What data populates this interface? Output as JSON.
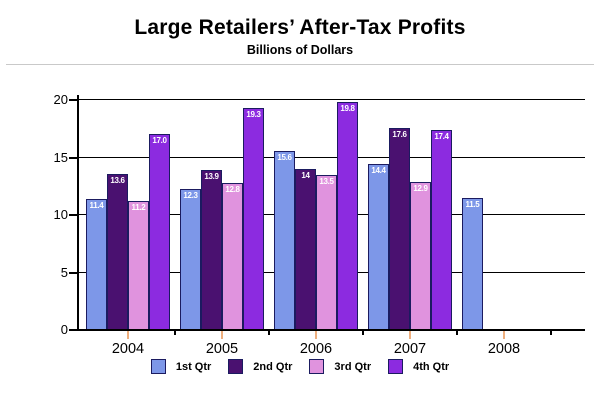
{
  "header": {
    "title": "Large Retailers’ After-Tax Profits",
    "subtitle": "Billions of Dollars"
  },
  "chart_data": {
    "type": "bar",
    "title": "Large Retailers’ After-Tax Profits",
    "subtitle": "Billions of Dollars",
    "xlabel": "",
    "ylabel": "",
    "categories": [
      "2004",
      "2005",
      "2006",
      "2007",
      "2008"
    ],
    "series": [
      {
        "name": "1st Qtr",
        "color": "#7d97e8",
        "values": [
          11.4,
          12.3,
          15.6,
          14.4,
          11.5
        ],
        "labels": [
          "11.4",
          "12.3",
          "15.6",
          "14.4",
          "11.5"
        ]
      },
      {
        "name": "2nd Qtr",
        "color": "#4a1170",
        "values": [
          13.6,
          13.9,
          14,
          17.6,
          null
        ],
        "labels": [
          "13.6",
          "13.9",
          "14",
          "17.6",
          null
        ]
      },
      {
        "name": "3rd Qtr",
        "color": "#e093de",
        "values": [
          11.2,
          12.8,
          13.5,
          12.9,
          null
        ],
        "labels": [
          "11.2",
          "12.8",
          "13.5",
          "12.9",
          null
        ]
      },
      {
        "name": "4th Qtr",
        "color": "#8c2be0",
        "values": [
          17.0,
          19.3,
          19.8,
          17.4,
          null
        ],
        "labels": [
          "17.0",
          "19.3",
          "19.8",
          "17.4",
          null
        ]
      }
    ],
    "y_ticks": [
      "0",
      "5",
      "10",
      "15",
      "20"
    ],
    "y_tick_values": [
      0,
      5,
      10,
      15,
      20
    ],
    "ylim": [
      0,
      20
    ],
    "grid": true,
    "legend_position": "bottom",
    "colors": {
      "bar_border": "#1b1b60",
      "bar_label_text": "#ffffff",
      "category_tick": "#efaf7e",
      "gridline": "#000000",
      "axis": "#000000",
      "title_rule": "#c9c9c9"
    }
  }
}
